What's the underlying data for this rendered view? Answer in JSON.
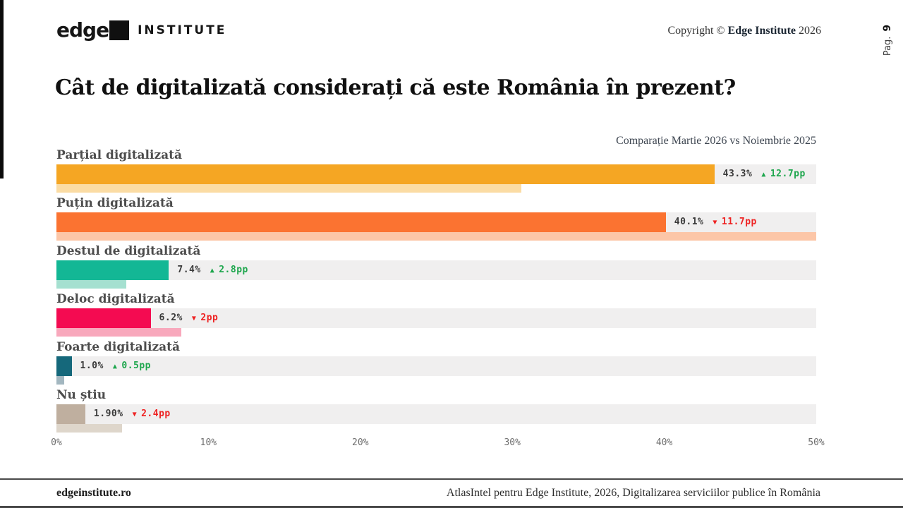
{
  "page": {
    "logo_word": "edge",
    "logo_suffix": "INSTITUTE",
    "copyright_prefix": "Copyright ©",
    "copyright_brand": "Edge Institute",
    "copyright_year": "2026",
    "page_label": "Pag.",
    "page_number": "9",
    "footer_left": "edgeinstitute.ro",
    "footer_right": "AtlasIntel pentru Edge Institute, 2026, Digitalizarea serviciilor publice în România"
  },
  "chart_data": {
    "type": "bar",
    "orientation": "horizontal",
    "title": "Cât de digitalizată considerați că este România în prezent?",
    "subtitle": "Comparație Martie 2026 vs Noiembrie 2025",
    "xlim": [
      0,
      50
    ],
    "x_ticks": [
      "0%",
      "10%",
      "20%",
      "30%",
      "40%",
      "50%"
    ],
    "series": [
      {
        "name": "Martie 2026",
        "role": "current"
      },
      {
        "name": "Noiembrie 2025",
        "role": "previous"
      }
    ],
    "categories": [
      {
        "label": "Parțial digitalizată",
        "current": 43.3,
        "previous": 30.6,
        "value_label": "43.3%",
        "delta_dir": "up",
        "delta_label": "12.7pp",
        "bar_color": "#F5A623",
        "prev_color": "#FBDCA4"
      },
      {
        "label": "Puțin digitalizată",
        "current": 40.1,
        "previous": 51.8,
        "value_label": "40.1%",
        "delta_dir": "down",
        "delta_label": "11.7pp",
        "bar_color": "#FB7331",
        "prev_color": "#FCC6A7"
      },
      {
        "label": "Destul de digitalizată",
        "current": 7.4,
        "previous": 4.6,
        "value_label": "7.4%",
        "delta_dir": "up",
        "delta_label": "2.8pp",
        "bar_color": "#13B795",
        "prev_color": "#A5E0D0"
      },
      {
        "label": "Deloc digitalizată",
        "current": 6.2,
        "previous": 8.2,
        "value_label": "6.2%",
        "delta_dir": "down",
        "delta_label": "2pp",
        "bar_color": "#F40B51",
        "prev_color": "#F8A8BC"
      },
      {
        "label": "Foarte digitalizată",
        "current": 1.0,
        "previous": 0.5,
        "value_label": "1.0%",
        "delta_dir": "up",
        "delta_label": "0.5pp",
        "bar_color": "#15687B",
        "prev_color": "#A3B7C0"
      },
      {
        "label": "Nu știu",
        "current": 1.9,
        "previous": 4.3,
        "value_label": "1.90%",
        "delta_dir": "down",
        "delta_label": "2.4pp",
        "bar_color": "#BFAF9F",
        "prev_color": "#DED6CB"
      }
    ],
    "colors": {
      "up": "#1EA64D",
      "down": "#EE2222",
      "value_text": "#3B3B3B",
      "track": "#F0EFEF"
    },
    "triangle_up": "▲",
    "triangle_down": "▼"
  }
}
